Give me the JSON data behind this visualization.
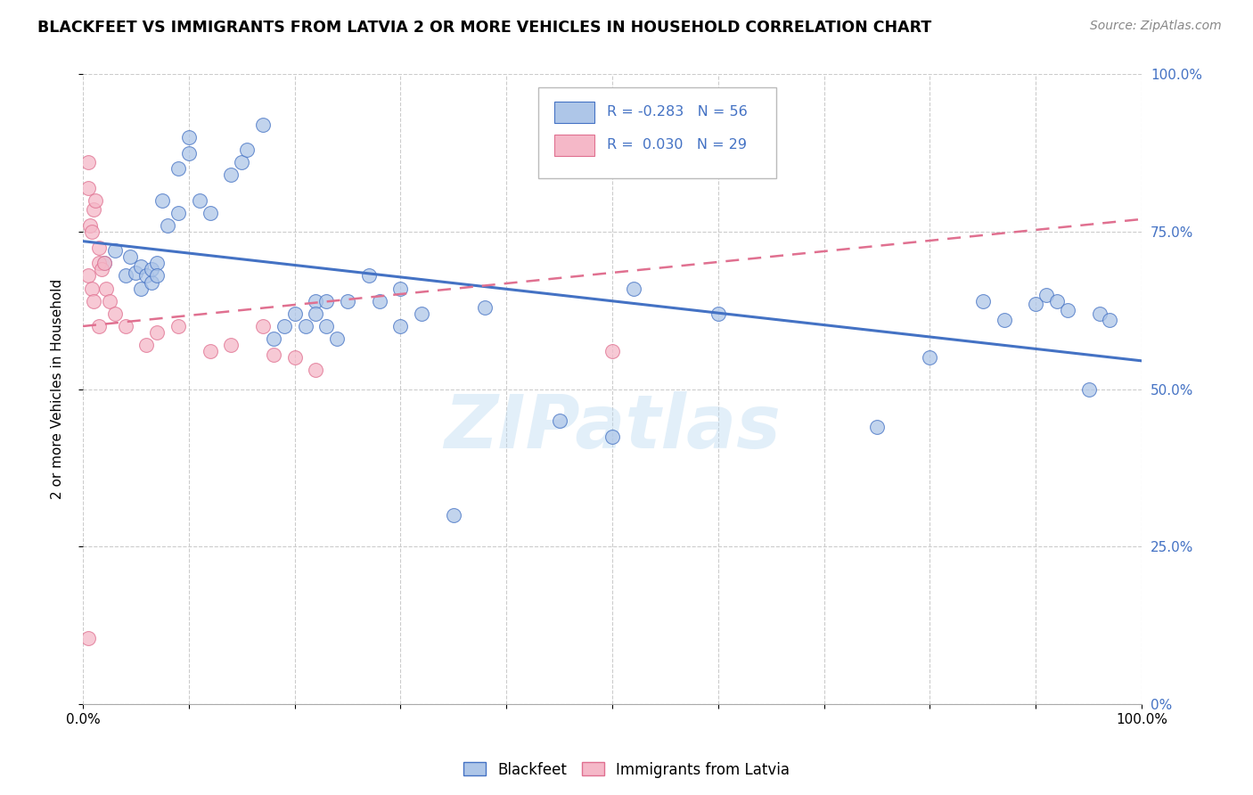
{
  "title": "BLACKFEET VS IMMIGRANTS FROM LATVIA 2 OR MORE VEHICLES IN HOUSEHOLD CORRELATION CHART",
  "source": "Source: ZipAtlas.com",
  "ylabel": "2 or more Vehicles in Household",
  "legend_label1": "Blackfeet",
  "legend_label2": "Immigrants from Latvia",
  "R1": "-0.283",
  "N1": "56",
  "R2": "0.030",
  "N2": "29",
  "color_blue": "#aec6e8",
  "color_pink": "#f5b8c8",
  "line_blue": "#4472c4",
  "line_pink": "#e07090",
  "watermark": "ZIPatlas",
  "blue_x": [
    0.02,
    0.03,
    0.04,
    0.045,
    0.05,
    0.055,
    0.055,
    0.06,
    0.065,
    0.065,
    0.07,
    0.07,
    0.075,
    0.08,
    0.09,
    0.09,
    0.1,
    0.1,
    0.11,
    0.12,
    0.14,
    0.15,
    0.155,
    0.17,
    0.18,
    0.19,
    0.2,
    0.21,
    0.22,
    0.22,
    0.23,
    0.23,
    0.24,
    0.25,
    0.27,
    0.28,
    0.3,
    0.3,
    0.32,
    0.35,
    0.38,
    0.45,
    0.5,
    0.52,
    0.6,
    0.75,
    0.8,
    0.85,
    0.87,
    0.9,
    0.91,
    0.92,
    0.93,
    0.95,
    0.96,
    0.97
  ],
  "blue_y": [
    0.7,
    0.72,
    0.68,
    0.71,
    0.685,
    0.695,
    0.66,
    0.68,
    0.67,
    0.69,
    0.7,
    0.68,
    0.8,
    0.76,
    0.85,
    0.78,
    0.875,
    0.9,
    0.8,
    0.78,
    0.84,
    0.86,
    0.88,
    0.92,
    0.58,
    0.6,
    0.62,
    0.6,
    0.64,
    0.62,
    0.64,
    0.6,
    0.58,
    0.64,
    0.68,
    0.64,
    0.66,
    0.6,
    0.62,
    0.3,
    0.63,
    0.45,
    0.425,
    0.66,
    0.62,
    0.44,
    0.55,
    0.64,
    0.61,
    0.635,
    0.65,
    0.64,
    0.625,
    0.5,
    0.62,
    0.61
  ],
  "pink_x": [
    0.005,
    0.005,
    0.007,
    0.008,
    0.01,
    0.012,
    0.015,
    0.015,
    0.018,
    0.02,
    0.022,
    0.025,
    0.03,
    0.04,
    0.06,
    0.07,
    0.09,
    0.12,
    0.14,
    0.17,
    0.18,
    0.2,
    0.22,
    0.005,
    0.008,
    0.01,
    0.015,
    0.5,
    0.005
  ],
  "pink_y": [
    0.86,
    0.82,
    0.76,
    0.75,
    0.785,
    0.8,
    0.725,
    0.7,
    0.69,
    0.7,
    0.66,
    0.64,
    0.62,
    0.6,
    0.57,
    0.59,
    0.6,
    0.56,
    0.57,
    0.6,
    0.555,
    0.55,
    0.53,
    0.68,
    0.66,
    0.64,
    0.6,
    0.56,
    0.105
  ],
  "xlim": [
    0.0,
    1.0
  ],
  "ylim": [
    0.0,
    1.0
  ],
  "xticks": [
    0.0,
    0.1,
    0.2,
    0.3,
    0.4,
    0.5,
    0.6,
    0.7,
    0.8,
    0.9,
    1.0
  ],
  "ytick_positions": [
    0.0,
    0.25,
    0.5,
    0.75,
    1.0
  ],
  "ytick_labels_right": [
    "0%",
    "25.0%",
    "50.0%",
    "75.0%",
    "100.0%"
  ],
  "grid_color": "#cccccc",
  "blue_line_start_y": 0.735,
  "blue_line_end_y": 0.545,
  "pink_line_start_y": 0.6,
  "pink_line_end_y": 0.77
}
